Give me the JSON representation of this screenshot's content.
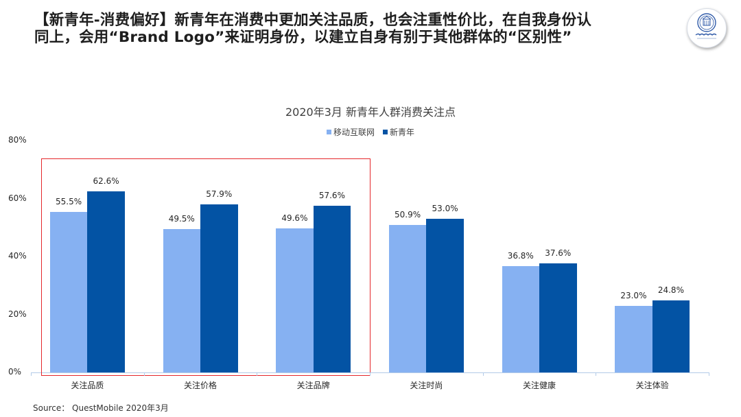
{
  "headline": "【新青年-消费偏好】新青年在消费中更加关注品质，也会注重性价比，在自我身份认同上，会用“Brand Logo”来证明身份，以建立自身有别于其他群体的“区别性”",
  "logo": {
    "name": "北京师范大学",
    "icon": "university-seal-icon"
  },
  "source": "Source：  QuestMobile 2020年3月",
  "colors": {
    "series1": "#86b1f2",
    "series2": "#0353a4",
    "highlight": "#e5262a",
    "axis": "#b3cbe8"
  },
  "chart_data": {
    "type": "bar",
    "title": "2020年3月 新青年人群消费关注点",
    "xlabel": "",
    "ylabel": "",
    "ylim": [
      0,
      80
    ],
    "y_ticks": [
      "0%",
      "20%",
      "40%",
      "60%",
      "80%"
    ],
    "grid": false,
    "legend_position": "top",
    "categories": [
      "关注品质",
      "关注价格",
      "关注品牌",
      "关注时尚",
      "关注健康",
      "关注体验"
    ],
    "series": [
      {
        "name": "移动互联网",
        "color": "#86b1f2",
        "values": [
          55.5,
          49.5,
          49.6,
          50.9,
          36.8,
          23.0
        ],
        "labels": [
          "55.5%",
          "49.5%",
          "49.6%",
          "50.9%",
          "36.8%",
          "23.0%"
        ]
      },
      {
        "name": "新青年",
        "color": "#0353a4",
        "values": [
          62.6,
          57.9,
          57.6,
          53.0,
          37.6,
          24.8
        ],
        "labels": [
          "62.6%",
          "57.9%",
          "57.6%",
          "53.0%",
          "37.6%",
          "24.8%"
        ]
      }
    ],
    "annotations": [
      {
        "type": "highlight-box",
        "covers": [
          "关注品质",
          "关注价格",
          "关注品牌"
        ],
        "color": "#e5262a"
      }
    ]
  }
}
